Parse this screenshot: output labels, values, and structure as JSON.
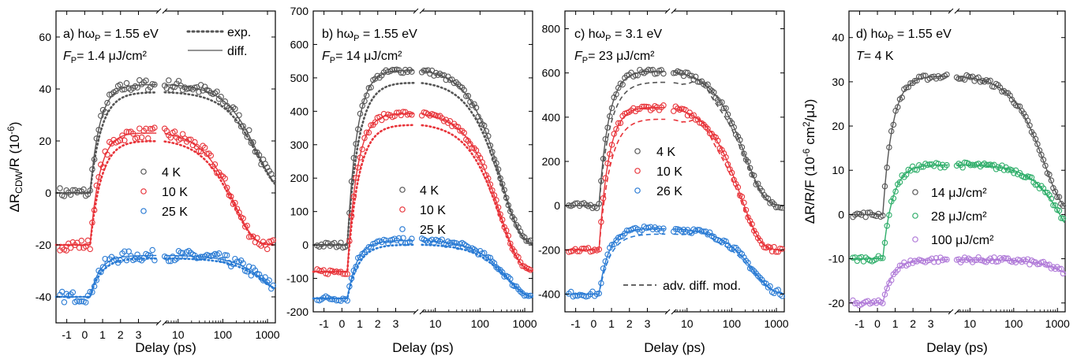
{
  "colors": {
    "gray": "#555555",
    "red": "#e8343a",
    "blue": "#2a7bd4",
    "green": "#2fae6a",
    "purple": "#b07ad8",
    "axis": "#000000"
  },
  "x_tick_labels_linear": [
    "-1",
    "0",
    "1",
    "2",
    "3"
  ],
  "x_tick_labels_log": [
    "10",
    "100",
    "1000"
  ],
  "chart_data": [
    {
      "type": "scatter",
      "panel_label": "a) hω",
      "panel_label_sub": "P",
      "panel_label_rest": " = 1.55 eV",
      "fluence_prefix": "F",
      "fluence_sub": "P",
      "fluence_rest": "= 1.4 μJ/cm²",
      "ylabel_parts": [
        "ΔR",
        "CDW",
        "/R (10",
        "-6",
        ")"
      ],
      "xlabel": "Delay (ps)",
      "ylim": [
        -50,
        70
      ],
      "yticks": [
        -40,
        -20,
        0,
        20,
        40,
        60
      ],
      "style_legend": [
        {
          "label": "exp.",
          "style": "dotted"
        },
        {
          "label": "diff.",
          "style": "solid"
        }
      ],
      "series": [
        {
          "name": "4 K",
          "color": "gray",
          "offset": 0,
          "amp": 42,
          "decay": 600
        },
        {
          "name": "10 K",
          "color": "red",
          "offset": -20,
          "amp": 44,
          "decay": 180
        },
        {
          "name": "25 K",
          "color": "blue",
          "offset": -40,
          "amp": 16,
          "decay": 900
        }
      ]
    },
    {
      "type": "scatter",
      "panel_label": "b) hω",
      "panel_label_sub": "P",
      "panel_label_rest": " = 1.55 eV",
      "fluence_prefix": "F",
      "fluence_sub": "P",
      "fluence_rest": "= 14 μJ/cm²",
      "xlabel": "Delay (ps)",
      "ylim": [
        -200,
        700
      ],
      "yticks": [
        -200,
        -100,
        0,
        100,
        200,
        300,
        400,
        500,
        600,
        700
      ],
      "series": [
        {
          "name": "4 K",
          "color": "gray",
          "offset": 0,
          "amp": 530,
          "decay": 300
        },
        {
          "name": "10 K",
          "color": "red",
          "offset": -80,
          "amp": 480,
          "decay": 280
        },
        {
          "name": "25 K",
          "color": "blue",
          "offset": -160,
          "amp": 175,
          "decay": 400
        }
      ]
    },
    {
      "type": "scatter",
      "panel_label": "c) hω",
      "panel_label_sub": "P",
      "panel_label_rest": " = 3.1 eV",
      "fluence_prefix": "F",
      "fluence_sub": "P",
      "fluence_rest": "= 23 μJ/cm²",
      "xlabel": "Delay (ps)",
      "ylim": [
        -480,
        880
      ],
      "yticks": [
        -400,
        -200,
        0,
        200,
        400,
        600,
        800
      ],
      "style_legend": [
        {
          "label": "adv. diff. mod.",
          "style": "dashed"
        }
      ],
      "series": [
        {
          "name": "4 K",
          "color": "gray",
          "offset": 0,
          "amp": 620,
          "decay": 200
        },
        {
          "name": "10 K",
          "color": "red",
          "offset": -200,
          "amp": 660,
          "decay": 160
        },
        {
          "name": "26 K",
          "color": "blue",
          "offset": -400,
          "amp": 300,
          "decay": 300
        }
      ]
    },
    {
      "type": "scatter",
      "panel_label": "d) hω",
      "panel_label_sub": "P",
      "panel_label_rest": " = 1.55 eV",
      "temp_label": "T",
      "temp_rest": "= 4 K",
      "ylabel_parts": [
        "ΔR/R/F (10",
        "-6",
        " cm",
        "2",
        "/μJ)"
      ],
      "xlabel": "Delay (ps)",
      "ylim": [
        -22,
        46
      ],
      "yticks": [
        -20,
        -10,
        0,
        10,
        20,
        30,
        40
      ],
      "series": [
        {
          "name": "14 μJ/cm²",
          "color": "gray",
          "offset": 0,
          "amp": 31.5,
          "decay": 500
        },
        {
          "name": "28 μJ/cm²",
          "color": "green",
          "offset": -10,
          "amp": 21.3,
          "decay": 1500
        },
        {
          "name": "100 μJ/cm²",
          "color": "purple",
          "offset": -20,
          "amp": 9.8,
          "decay": 4000
        }
      ]
    }
  ]
}
